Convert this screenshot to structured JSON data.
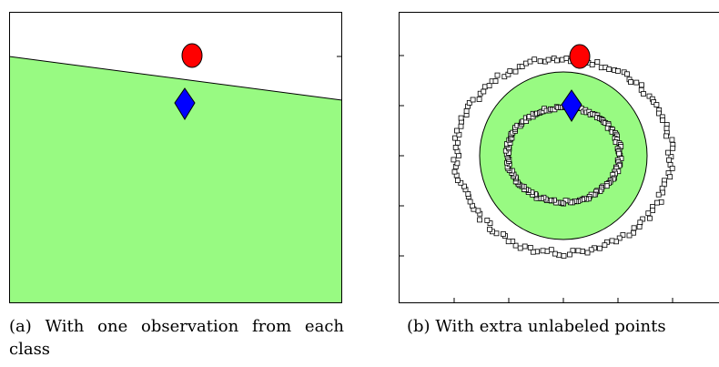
{
  "colors": {
    "region": "#98fa82",
    "class_circle": "#ff0000",
    "class_diamond": "#0000ff",
    "unlabeled_marker": "#000000",
    "background": "#ffffff"
  },
  "panel_a": {
    "caption_label": "(a)",
    "caption_text": "With one observation from each class",
    "markers": {
      "circle": {
        "shape": "circle",
        "color": "red"
      },
      "diamond": {
        "shape": "diamond",
        "color": "blue"
      }
    }
  },
  "panel_b": {
    "caption_label": "(b)",
    "caption_text": "With extra unlabeled points",
    "markers": {
      "circle": {
        "shape": "circle",
        "color": "red"
      },
      "diamond": {
        "shape": "diamond",
        "color": "blue"
      },
      "unlabeled": {
        "shape": "open-square",
        "rings": 2
      }
    }
  }
}
